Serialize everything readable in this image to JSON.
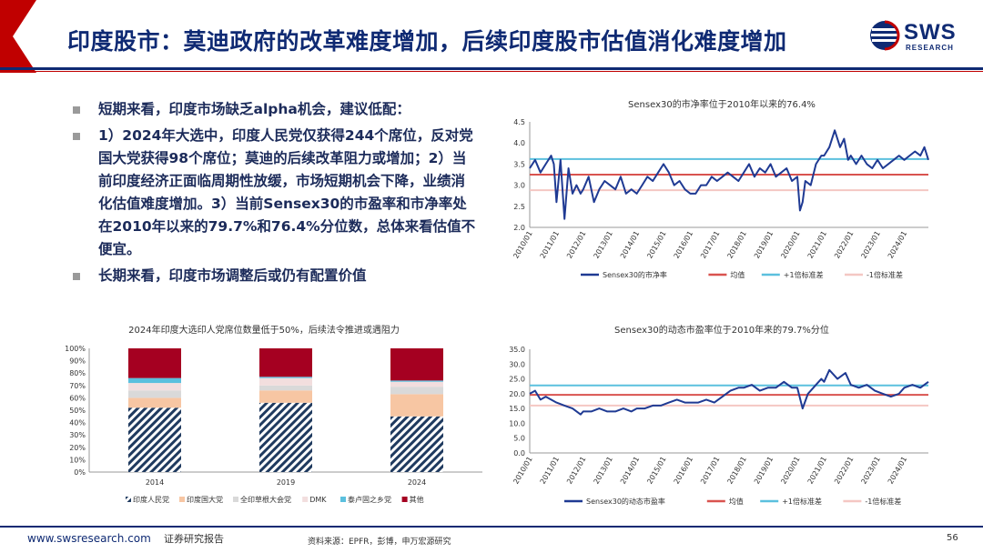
{
  "header": {
    "title": "印度股市：莫迪政府的改革难度增加，后续印度股市估值消化难度增加",
    "logo_text": "SWS",
    "logo_sub": "RESEARCH",
    "logo_icon": "sws-globe-icon",
    "accent_red": "#c00000",
    "accent_navy": "#0f2a73"
  },
  "bullets": [
    "短期来看，印度市场缺乏alpha机会，建议低配：",
    "1）2024年大选中，印度人民党仅获得244个席位，反对党国大党获得98个席位；莫迪的后续改革阻力或增加；2）当前印度经济正面临周期性放缓，市场短期机会下降，业绩消化估值难度增加。3）当前Sensex30的市盈率和市净率处在2010年以来的79.7%和76.4%分位数，总体来看估值不便宜。",
    "长期来看，印度市场调整后或仍有配置价值"
  ],
  "footer": {
    "site": "www.swsresearch.com",
    "doc_type": "证券研究报告",
    "source": "资料来源：EPFR，彭博，申万宏源研究",
    "page": "56"
  },
  "chart_data": [
    {
      "id": "pb",
      "type": "line",
      "title": "Sensex30的市净率位于2010年以来的76.4%",
      "x_ticks": [
        "2010/01",
        "2011/01",
        "2012/01",
        "2013/01",
        "2014/01",
        "2015/01",
        "2016/01",
        "2017/01",
        "2018/01",
        "2019/01",
        "2020/01",
        "2021/01",
        "2022/01",
        "2023/01",
        "2024/01"
      ],
      "x_range": [
        2010.0,
        2024.9
      ],
      "ylim": [
        2.0,
        4.5
      ],
      "y_ticks": [
        "2.0",
        "2.5",
        "3.0",
        "3.5",
        "4.0",
        "4.5"
      ],
      "series": [
        {
          "name": "Sensex30的市净率",
          "color": "#1f3a93",
          "x": [
            2010.0,
            2010.2,
            2010.4,
            2010.6,
            2010.8,
            2010.9,
            2011.0,
            2011.15,
            2011.3,
            2011.45,
            2011.6,
            2011.75,
            2011.9,
            2012.0,
            2012.2,
            2012.4,
            2012.6,
            2012.8,
            2013.0,
            2013.2,
            2013.4,
            2013.6,
            2013.8,
            2014.0,
            2014.2,
            2014.4,
            2014.6,
            2014.8,
            2015.0,
            2015.2,
            2015.4,
            2015.6,
            2015.8,
            2016.0,
            2016.2,
            2016.4,
            2016.6,
            2016.8,
            2017.0,
            2017.2,
            2017.4,
            2017.6,
            2017.8,
            2018.0,
            2018.2,
            2018.4,
            2018.6,
            2018.8,
            2019.0,
            2019.2,
            2019.4,
            2019.6,
            2019.8,
            2020.0,
            2020.1,
            2020.2,
            2020.3,
            2020.5,
            2020.7,
            2020.9,
            2021.0,
            2021.2,
            2021.4,
            2021.6,
            2021.75,
            2021.9,
            2022.0,
            2022.2,
            2022.4,
            2022.6,
            2022.8,
            2023.0,
            2023.2,
            2023.4,
            2023.6,
            2023.8,
            2024.0,
            2024.2,
            2024.4,
            2024.6,
            2024.75,
            2024.9
          ],
          "y": [
            3.4,
            3.6,
            3.3,
            3.5,
            3.7,
            3.5,
            2.6,
            3.6,
            2.2,
            3.4,
            2.8,
            3.0,
            2.8,
            2.9,
            3.2,
            2.6,
            2.9,
            3.1,
            3.0,
            2.9,
            3.2,
            2.8,
            2.9,
            2.8,
            3.0,
            3.2,
            3.1,
            3.3,
            3.5,
            3.3,
            3.0,
            3.1,
            2.9,
            2.8,
            2.8,
            3.0,
            3.0,
            3.2,
            3.1,
            3.2,
            3.3,
            3.2,
            3.1,
            3.3,
            3.5,
            3.2,
            3.4,
            3.3,
            3.5,
            3.2,
            3.3,
            3.4,
            3.1,
            3.2,
            2.4,
            2.6,
            3.1,
            3.0,
            3.5,
            3.7,
            3.7,
            3.9,
            4.3,
            3.9,
            4.1,
            3.6,
            3.7,
            3.5,
            3.7,
            3.5,
            3.4,
            3.6,
            3.4,
            3.5,
            3.6,
            3.7,
            3.6,
            3.7,
            3.8,
            3.7,
            3.9,
            3.6
          ]
        },
        {
          "name": "均值",
          "color": "#d9534f",
          "value": 3.25
        },
        {
          "name": "+1倍标准差",
          "color": "#5bc0de",
          "value": 3.62
        },
        {
          "name": "-1倍标准差",
          "color": "#f4c7c3",
          "value": 2.88
        }
      ]
    },
    {
      "id": "seats",
      "type": "bar",
      "title": "2024年印度大选印人党席位数量低于50%，后续法令推进或遇阻力",
      "categories": [
        "2014",
        "2019",
        "2024"
      ],
      "ylim": [
        0,
        100
      ],
      "y_ticks": [
        "0%",
        "10%",
        "20%",
        "30%",
        "40%",
        "50%",
        "60%",
        "70%",
        "80%",
        "90%",
        "100%"
      ],
      "series": [
        {
          "name": "印度人民党",
          "color": "#1f3a5f",
          "pattern": "hatch",
          "values": [
            52,
            56,
            45
          ]
        },
        {
          "name": "印度国大党",
          "color": "#f7c6a3",
          "values": [
            8,
            10,
            18
          ]
        },
        {
          "name": "全印草根大会党",
          "color": "#d9d9d9",
          "values": [
            6,
            4,
            6
          ]
        },
        {
          "name": "DMK",
          "color": "#f2dede",
          "values": [
            6,
            6,
            4
          ]
        },
        {
          "name": "泰卢固之乡党",
          "color": "#5bc0de",
          "values": [
            4,
            1,
            1
          ]
        },
        {
          "name": "其他",
          "color": "#a50021",
          "values": [
            24,
            23,
            26
          ]
        }
      ]
    },
    {
      "id": "pe",
      "type": "line",
      "title": "Sensex30的动态市盈率位于2010年来的79.7%分位",
      "x_ticks": [
        "2010/01",
        "2011/01",
        "2012/01",
        "2013/01",
        "2014/01",
        "2015/01",
        "2016/01",
        "2017/01",
        "2018/01",
        "2019/01",
        "2020/01",
        "2021/01",
        "2022/01",
        "2023/01",
        "2024/01"
      ],
      "x_range": [
        2010.0,
        2024.9
      ],
      "ylim": [
        0,
        35
      ],
      "y_ticks": [
        "0.0",
        "5.0",
        "10.0",
        "15.0",
        "20.0",
        "25.0",
        "30.0",
        "35.0"
      ],
      "series": [
        {
          "name": "Sensex30的动态市盈率",
          "color": "#1f3a93",
          "x": [
            2010.0,
            2010.2,
            2010.4,
            2010.6,
            2010.8,
            2011.0,
            2011.3,
            2011.6,
            2011.9,
            2012.0,
            2012.3,
            2012.6,
            2012.9,
            2013.2,
            2013.5,
            2013.8,
            2014.0,
            2014.3,
            2014.6,
            2014.9,
            2015.2,
            2015.5,
            2015.8,
            2016.0,
            2016.3,
            2016.6,
            2016.9,
            2017.2,
            2017.5,
            2017.8,
            2018.0,
            2018.3,
            2018.6,
            2018.9,
            2019.2,
            2019.5,
            2019.8,
            2020.0,
            2020.2,
            2020.4,
            2020.7,
            2020.9,
            2021.0,
            2021.2,
            2021.5,
            2021.8,
            2022.0,
            2022.3,
            2022.6,
            2022.9,
            2023.2,
            2023.5,
            2023.8,
            2024.0,
            2024.3,
            2024.6,
            2024.9
          ],
          "y": [
            20,
            21,
            18,
            19,
            18,
            17,
            16,
            15,
            13,
            14,
            14,
            15,
            14,
            14,
            15,
            14,
            15,
            15,
            16,
            16,
            17,
            18,
            17,
            17,
            17,
            18,
            17,
            19,
            21,
            22,
            22,
            23,
            21,
            22,
            22,
            24,
            22,
            22,
            15,
            20,
            23,
            25,
            24,
            28,
            25,
            27,
            23,
            22,
            23,
            21,
            20,
            19,
            20,
            22,
            23,
            22,
            24
          ]
        },
        {
          "name": "均值",
          "color": "#d9534f",
          "value": 19.6
        },
        {
          "name": "+1倍标准差",
          "color": "#5bc0de",
          "value": 22.8
        },
        {
          "name": "-1倍标准差",
          "color": "#f4c7c3",
          "value": 16.0
        }
      ]
    }
  ]
}
